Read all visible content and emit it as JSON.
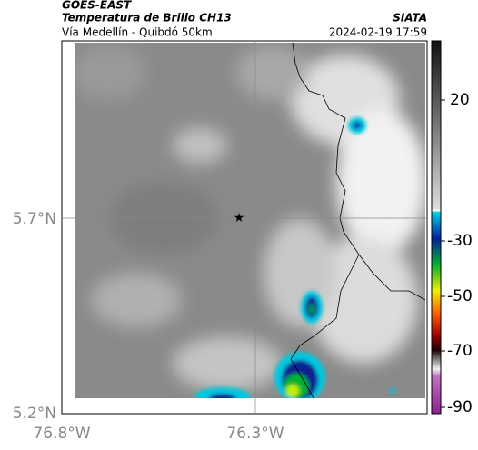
{
  "header": {
    "title": "GOES-EAST",
    "subtitle": "Temperatura de Brillo CH13",
    "route": "Vía Medellín - Quibdó 50km",
    "source": "SIATA",
    "timestamp": "2024-02-19 17:59"
  },
  "map": {
    "lat_labels": [
      "5.7°N",
      "5.2°N"
    ],
    "lon_labels": [
      "76.8°W",
      "76.3°W"
    ]
  },
  "colorbar": {
    "labels": [
      "20",
      "-30",
      "-50",
      "-70",
      "-90"
    ]
  }
}
